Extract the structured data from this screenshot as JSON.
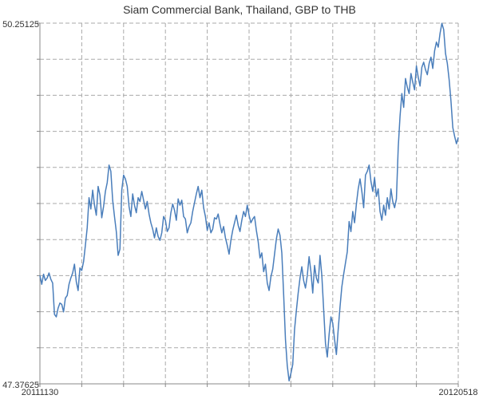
{
  "chart_data": {
    "type": "line",
    "title": "Siam Commercial Bank, Thailand, GBP to THB",
    "xlabel": "",
    "ylabel": "",
    "x_start": "20111130",
    "x_end": "20120518",
    "ylim": [
      47.37625,
      50.25125
    ],
    "y_tick_labels": [
      "50.25125",
      "47.37625"
    ],
    "x_tick_labels": [
      "20111130",
      "20120518"
    ],
    "grid": true,
    "line_color": "#4a7ebb",
    "series": [
      {
        "name": "",
        "values": [
          48.24,
          48.17,
          48.25,
          48.2,
          48.22,
          48.26,
          48.21,
          48.18,
          47.93,
          47.91,
          47.98,
          48.02,
          48.01,
          47.95,
          48.06,
          48.08,
          48.17,
          48.22,
          48.26,
          48.33,
          48.19,
          48.12,
          48.3,
          48.28,
          48.35,
          48.48,
          48.62,
          48.86,
          48.77,
          48.92,
          48.8,
          48.72,
          48.95,
          48.88,
          48.7,
          48.79,
          48.91,
          48.98,
          49.12,
          49.07,
          48.84,
          48.71,
          48.59,
          48.4,
          48.45,
          48.92,
          49.04,
          49.01,
          48.95,
          48.79,
          48.71,
          48.89,
          48.8,
          48.74,
          48.86,
          48.83,
          48.91,
          48.84,
          48.77,
          48.83,
          48.73,
          48.66,
          48.61,
          48.54,
          48.62,
          48.55,
          48.52,
          48.58,
          48.71,
          48.68,
          48.59,
          48.62,
          48.74,
          48.81,
          48.76,
          48.68,
          48.85,
          48.8,
          48.84,
          48.71,
          48.69,
          48.58,
          48.63,
          48.66,
          48.75,
          48.82,
          48.89,
          48.95,
          48.86,
          48.92,
          48.78,
          48.71,
          48.6,
          48.66,
          48.58,
          48.61,
          48.7,
          48.69,
          48.73,
          48.65,
          48.58,
          48.63,
          48.54,
          48.48,
          48.41,
          48.52,
          48.6,
          48.66,
          48.72,
          48.64,
          48.59,
          48.68,
          48.75,
          48.71,
          48.8,
          48.72,
          48.66,
          48.69,
          48.71,
          48.6,
          48.51,
          48.38,
          48.42,
          48.27,
          48.33,
          48.18,
          48.12,
          48.23,
          48.29,
          48.41,
          48.53,
          48.61,
          48.56,
          48.42,
          48.09,
          47.73,
          47.52,
          47.4,
          47.46,
          47.53,
          47.81,
          47.96,
          48.1,
          48.22,
          48.31,
          48.2,
          48.14,
          48.24,
          48.39,
          48.27,
          48.1,
          48.32,
          48.22,
          48.18,
          48.4,
          48.24,
          47.97,
          47.7,
          47.59,
          47.77,
          47.91,
          47.86,
          47.73,
          47.61,
          47.81,
          47.99,
          48.15,
          48.25,
          48.34,
          48.43,
          48.67,
          48.59,
          48.75,
          48.66,
          48.81,
          48.93,
          49.01,
          48.91,
          48.78,
          49.04,
          49.07,
          49.12,
          48.99,
          48.91,
          49.02,
          48.87,
          48.93,
          48.75,
          48.68,
          48.8,
          48.72,
          48.86,
          48.77,
          48.93,
          48.83,
          48.78,
          48.85,
          49.26,
          49.51,
          49.69,
          49.58,
          49.81,
          49.74,
          49.69,
          49.85,
          49.78,
          49.72,
          49.91,
          49.82,
          49.75,
          49.9,
          49.94,
          49.88,
          49.84,
          49.93,
          49.98,
          49.89,
          50.03,
          50.1,
          50.06,
          50.17,
          50.25,
          50.2,
          50.01,
          49.93,
          49.8,
          49.63,
          49.42,
          49.35,
          49.29,
          49.34
        ]
      }
    ]
  }
}
